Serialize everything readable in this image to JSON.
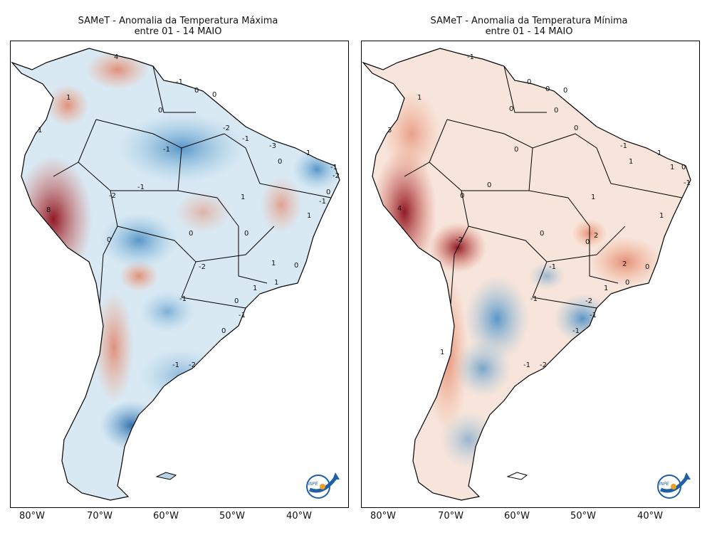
{
  "panels": [
    {
      "title_line1": "SAMeT - Anomalia da Temperatura Máxima",
      "title_line2": "entre 01 - 14 MAIO",
      "contour_labels": [
        "4",
        "-1",
        "0",
        "1",
        "0",
        "0",
        "-1",
        "-2",
        "-1",
        "-3",
        "1",
        "1",
        "-1",
        "-2",
        "0",
        "-1",
        "-1",
        "-2",
        "1",
        "0",
        "8",
        "0",
        "0",
        "0",
        "1",
        "-2",
        "1",
        "-1",
        "0",
        "1",
        "0",
        "1",
        "-1",
        "0",
        "-1",
        "-2"
      ],
      "logo_text": "INPE"
    },
    {
      "title_line1": "SAMeT - Anomalia da Temperatura Mínima",
      "title_line2": "entre 01 - 14 MAIO",
      "contour_labels": [
        "-1",
        "1",
        "0",
        "0",
        "0",
        "0",
        "0",
        "3",
        "0",
        "-1",
        "1",
        "1",
        "0",
        "1",
        "0",
        "0",
        "-1",
        "4",
        "1",
        "0",
        "2",
        "0",
        "0",
        "1",
        "-2",
        "2",
        "0",
        "-1",
        "1",
        "0",
        "-1",
        "-2",
        "-1",
        "-1",
        "-1",
        "-2",
        "1"
      ],
      "logo_text": "INPE"
    }
  ],
  "x_axis_ticks": [
    "80°W",
    "70°W",
    "60°W",
    "50°W",
    "40°W"
  ],
  "colors": {
    "warm": "#b2182b",
    "cool": "#2166ac",
    "neutral": "#f7f7f7",
    "border": "#000000"
  }
}
